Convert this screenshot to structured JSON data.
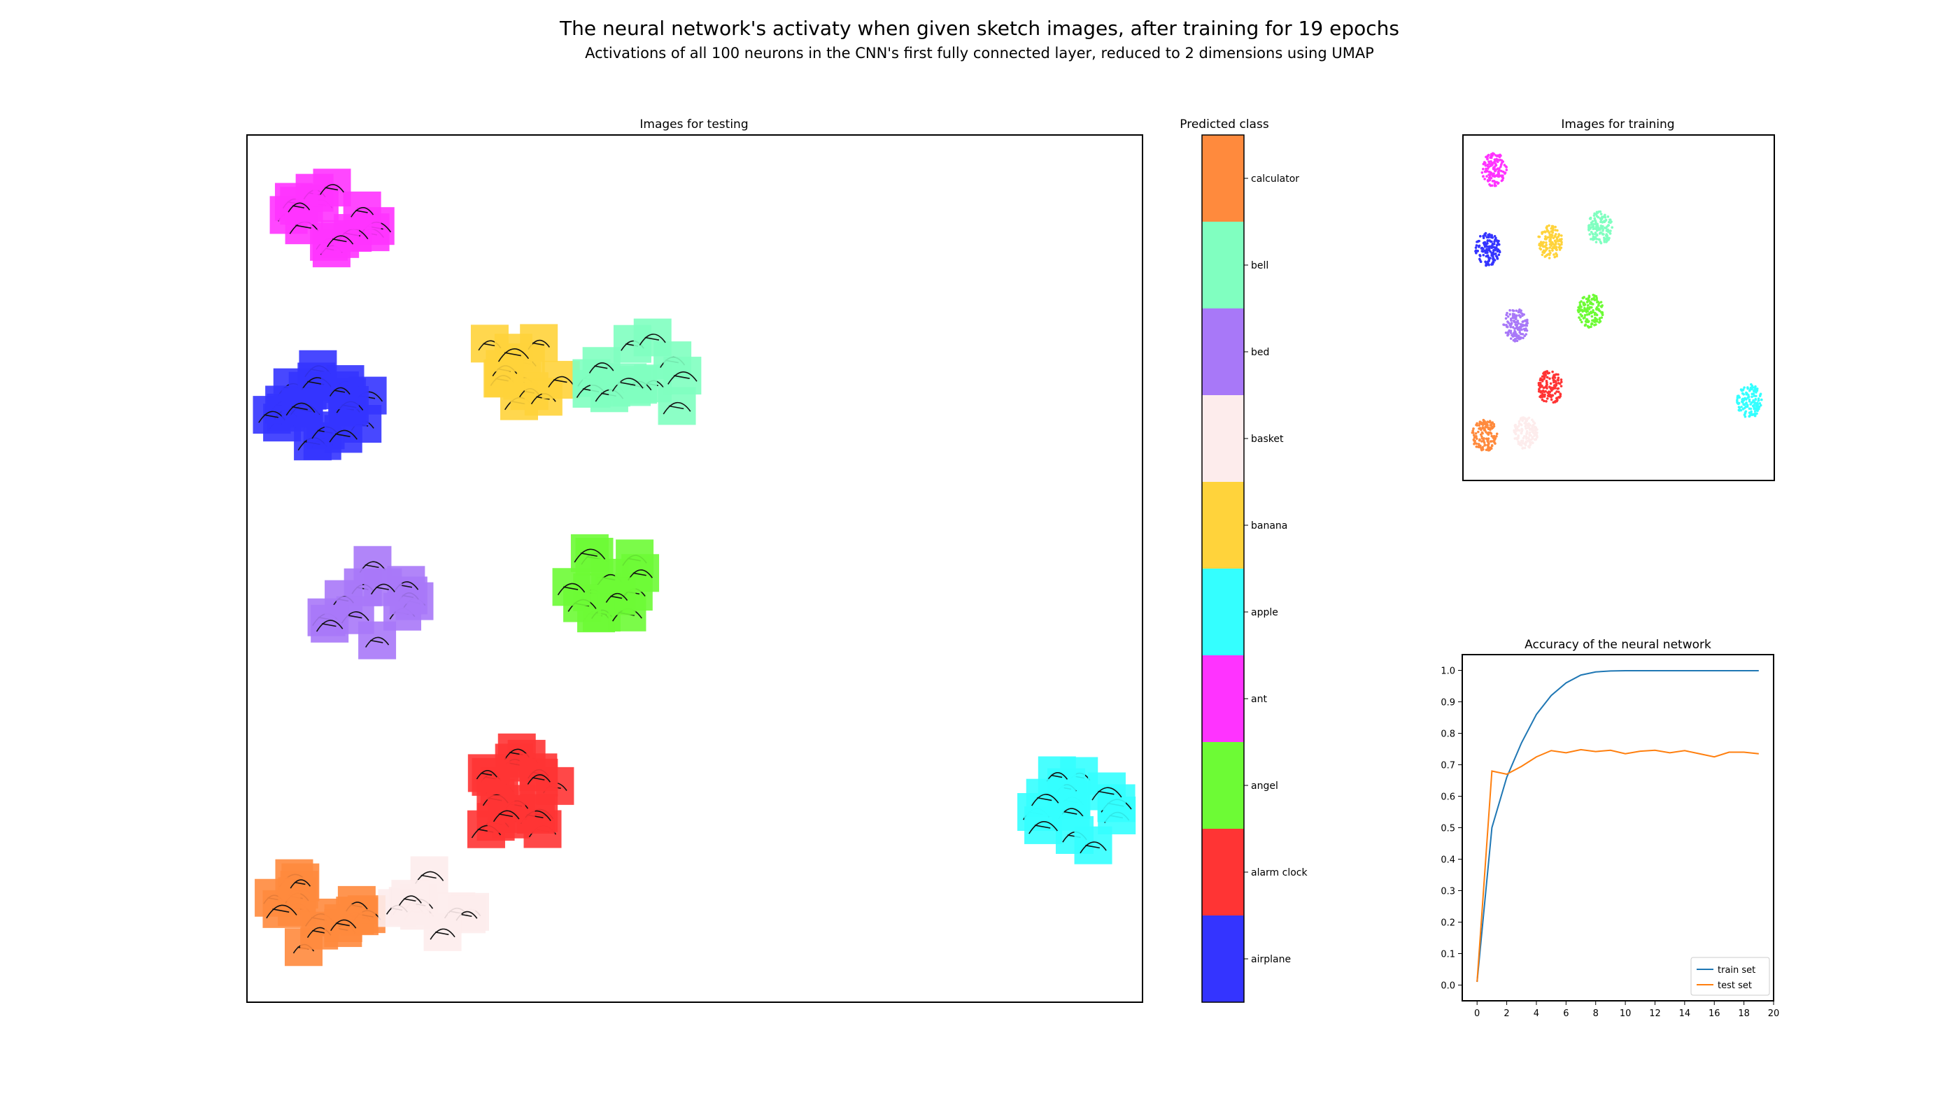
{
  "figure": {
    "title": "The neural network's activaty when given sketch images, after training for 19 epochs",
    "subtitle": "Activations of all 100 neurons in the CNN's first fully connected layer, reduced to 2 dimensions using UMAP"
  },
  "chart_data": [
    {
      "type": "scatter",
      "title": "Images for testing",
      "description_of_marks": "thumbnail sketch images tinted by predicted class",
      "clusters": [
        {
          "class": "ant",
          "x": 0.09,
          "y": 0.91,
          "count": 14
        },
        {
          "class": "airplane",
          "x": 0.08,
          "y": 0.69,
          "count": 22
        },
        {
          "class": "banana",
          "x": 0.3,
          "y": 0.72,
          "count": 12
        },
        {
          "class": "bell",
          "x": 0.44,
          "y": 0.72,
          "count": 14
        },
        {
          "class": "bed",
          "x": 0.14,
          "y": 0.46,
          "count": 12
        },
        {
          "class": "angel",
          "x": 0.39,
          "y": 0.48,
          "count": 14
        },
        {
          "class": "alarm clock",
          "x": 0.3,
          "y": 0.24,
          "count": 18
        },
        {
          "class": "calculator",
          "x": 0.08,
          "y": 0.1,
          "count": 16
        },
        {
          "class": "basket",
          "x": 0.22,
          "y": 0.12,
          "count": 10
        },
        {
          "class": "apple",
          "x": 0.92,
          "y": 0.22,
          "count": 14
        }
      ]
    },
    {
      "type": "heatmap",
      "title": "Predicted class",
      "classes": [
        "calculator",
        "bell",
        "bed",
        "basket",
        "banana",
        "apple",
        "ant",
        "angel",
        "alarm clock",
        "airplane"
      ],
      "colors": [
        "#ff8a3d",
        "#80ffc0",
        "#a878f8",
        "#fdecec",
        "#ffd33b",
        "#34ffff",
        "#ff33ff",
        "#6dfb35",
        "#ff3434",
        "#3434ff"
      ]
    },
    {
      "type": "scatter",
      "title": "Images for training",
      "clusters": [
        {
          "class": "ant",
          "x": 0.1,
          "y": 0.9
        },
        {
          "class": "airplane",
          "x": 0.08,
          "y": 0.67
        },
        {
          "class": "banana",
          "x": 0.28,
          "y": 0.69
        },
        {
          "class": "bell",
          "x": 0.44,
          "y": 0.73
        },
        {
          "class": "bed",
          "x": 0.17,
          "y": 0.45
        },
        {
          "class": "angel",
          "x": 0.41,
          "y": 0.49
        },
        {
          "class": "alarm clock",
          "x": 0.28,
          "y": 0.27
        },
        {
          "class": "calculator",
          "x": 0.07,
          "y": 0.13
        },
        {
          "class": "basket",
          "x": 0.2,
          "y": 0.14
        },
        {
          "class": "apple",
          "x": 0.92,
          "y": 0.23
        }
      ]
    },
    {
      "type": "line",
      "title": "Accuracy of the neural network",
      "x": [
        0,
        1,
        2,
        3,
        4,
        5,
        6,
        7,
        8,
        9,
        10,
        11,
        12,
        13,
        14,
        15,
        16,
        17,
        18,
        19
      ],
      "series": [
        {
          "name": "train set",
          "color": "#1f77b4",
          "values": [
            0.01,
            0.5,
            0.66,
            0.77,
            0.86,
            0.92,
            0.96,
            0.985,
            0.995,
            0.998,
            0.999,
            0.999,
            0.999,
            0.999,
            0.999,
            0.999,
            0.999,
            0.999,
            0.999,
            0.999
          ]
        },
        {
          "name": "test set",
          "color": "#ff7f0e",
          "values": [
            0.01,
            0.68,
            0.67,
            0.695,
            0.725,
            0.745,
            0.738,
            0.748,
            0.742,
            0.746,
            0.735,
            0.743,
            0.746,
            0.738,
            0.745,
            0.735,
            0.725,
            0.74,
            0.74,
            0.735
          ]
        }
      ],
      "xlim": [
        -1,
        20
      ],
      "ylim": [
        -0.05,
        1.05
      ],
      "xticks": [
        0,
        2,
        4,
        6,
        8,
        10,
        12,
        14,
        16,
        18,
        20
      ],
      "yticks": [
        0.0,
        0.1,
        0.2,
        0.3,
        0.4,
        0.5,
        0.6,
        0.7,
        0.8,
        0.9,
        1.0
      ],
      "legend": "lower-right"
    }
  ]
}
